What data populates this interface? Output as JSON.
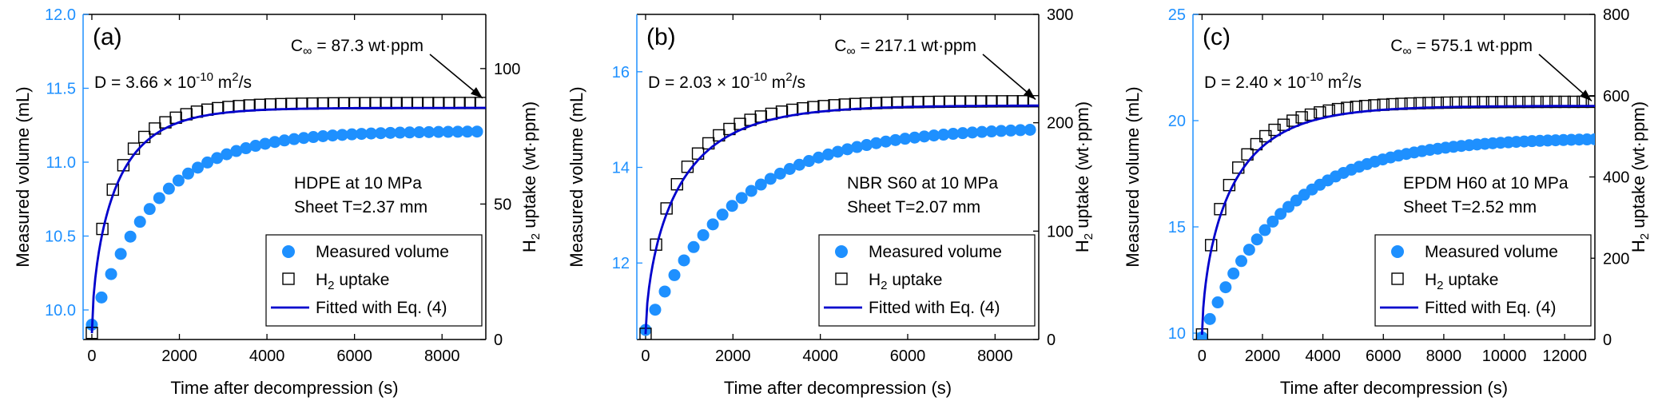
{
  "figure": {
    "colors": {
      "measured": "#1e90ff",
      "fit": "#0000cc",
      "axis": "#000000",
      "leftAxisBlue": "#1e90ff",
      "square": "#000000"
    },
    "legend_labels": {
      "measured": "Measured volume",
      "uptake_h": "H",
      "uptake_sub": "2",
      "uptake_rest": " uptake",
      "fit": "Fitted with Eq. (4)"
    },
    "xlabel": "Time after decompression (s)",
    "ylabel_left": "Measured volume (mL)",
    "ylabel_right_h": "H",
    "ylabel_right_sub": "2",
    "ylabel_right_rest": " uptake (wt·ppm)",
    "d_prefix": "D = ",
    "d_times": " × 10",
    "d_exp": "-10",
    "d_unit": " m",
    "d_unit_exp": "2",
    "d_unit_tail": "/s",
    "cinf_prefix": "C",
    "cinf_sub": "∞",
    "cinf_mid": " = ",
    "cinf_unit": " wt·ppm"
  },
  "chart_data": [
    {
      "type": "scatter",
      "panel_label": "(a)",
      "material": "HDPE at 10 MPa",
      "sheet": "Sheet T=2.37 mm",
      "D_value": "3.66",
      "C_inf_value": "87.3",
      "x_range": [
        -200,
        9000
      ],
      "x_ticks": [
        0,
        2000,
        4000,
        6000,
        8000
      ],
      "y_left_range": [
        9.8,
        12.0
      ],
      "y_left_ticks": [
        10.0,
        10.5,
        11.0,
        11.5,
        12.0
      ],
      "y_left_decimals": 1,
      "y_right_range": [
        0,
        120
      ],
      "y_right_ticks": [
        0,
        50,
        100
      ],
      "series": [
        {
          "name": "Measured volume",
          "axis": "left",
          "x_max": 9000,
          "step": 220,
          "y0": 9.9,
          "y_inf": 11.21,
          "tau": 1450
        },
        {
          "name": "H2 uptake",
          "axis": "right",
          "x_max": 9000,
          "step": 240,
          "y_inf": 87.3,
          "tau": 1250
        },
        {
          "name": "Fitted with Eq. (4)",
          "axis": "right",
          "x_max": 9000,
          "y_inf": 85.5,
          "tau": 1300
        }
      ]
    },
    {
      "type": "scatter",
      "panel_label": "(b)",
      "material": "NBR S60 at 10 MPa",
      "sheet": "Sheet T=2.07 mm",
      "D_value": "2.03",
      "C_inf_value": "217.1",
      "x_range": [
        -200,
        9000
      ],
      "x_ticks": [
        0,
        2000,
        4000,
        6000,
        8000
      ],
      "y_left_range": [
        10.4,
        17.2
      ],
      "y_left_ticks": [
        12,
        14,
        16
      ],
      "y_left_decimals": 0,
      "y_right_range": [
        0,
        300
      ],
      "y_right_ticks": [
        0,
        100,
        200,
        300
      ],
      "series": [
        {
          "name": "Measured volume",
          "axis": "left",
          "x_max": 9000,
          "step": 220,
          "y0": 10.6,
          "y_inf": 14.85,
          "tau": 2100
        },
        {
          "name": "H2 uptake",
          "axis": "right",
          "x_max": 9000,
          "step": 240,
          "y_inf": 220,
          "tau": 1750
        },
        {
          "name": "Fitted with Eq. (4)",
          "axis": "right",
          "x_max": 9000,
          "y_inf": 216,
          "tau": 1850
        }
      ]
    },
    {
      "type": "scatter",
      "panel_label": "(c)",
      "material": "EPDM H60 at 10 MPa",
      "sheet": "Sheet T=2.52 mm",
      "D_value": "2.40",
      "C_inf_value": "575.1",
      "x_range": [
        -300,
        13000
      ],
      "x_ticks": [
        0,
        2000,
        4000,
        6000,
        8000,
        10000,
        12000
      ],
      "y_left_range": [
        9.7,
        25.0
      ],
      "y_left_ticks": [
        10,
        15,
        20,
        25
      ],
      "y_left_decimals": 0,
      "y_right_range": [
        0,
        800
      ],
      "y_right_ticks": [
        0,
        200,
        400,
        600,
        800
      ],
      "series": [
        {
          "name": "Measured volume",
          "axis": "left",
          "x_max": 13000,
          "step": 260,
          "y0": 9.8,
          "y_inf": 19.2,
          "tau": 2700
        },
        {
          "name": "H2 uptake",
          "axis": "right",
          "x_max": 13000,
          "step": 300,
          "y_inf": 585,
          "tau": 2200
        },
        {
          "name": "Fitted with Eq. (4)",
          "axis": "right",
          "x_max": 13000,
          "y_inf": 575,
          "tau": 2400
        }
      ]
    }
  ]
}
